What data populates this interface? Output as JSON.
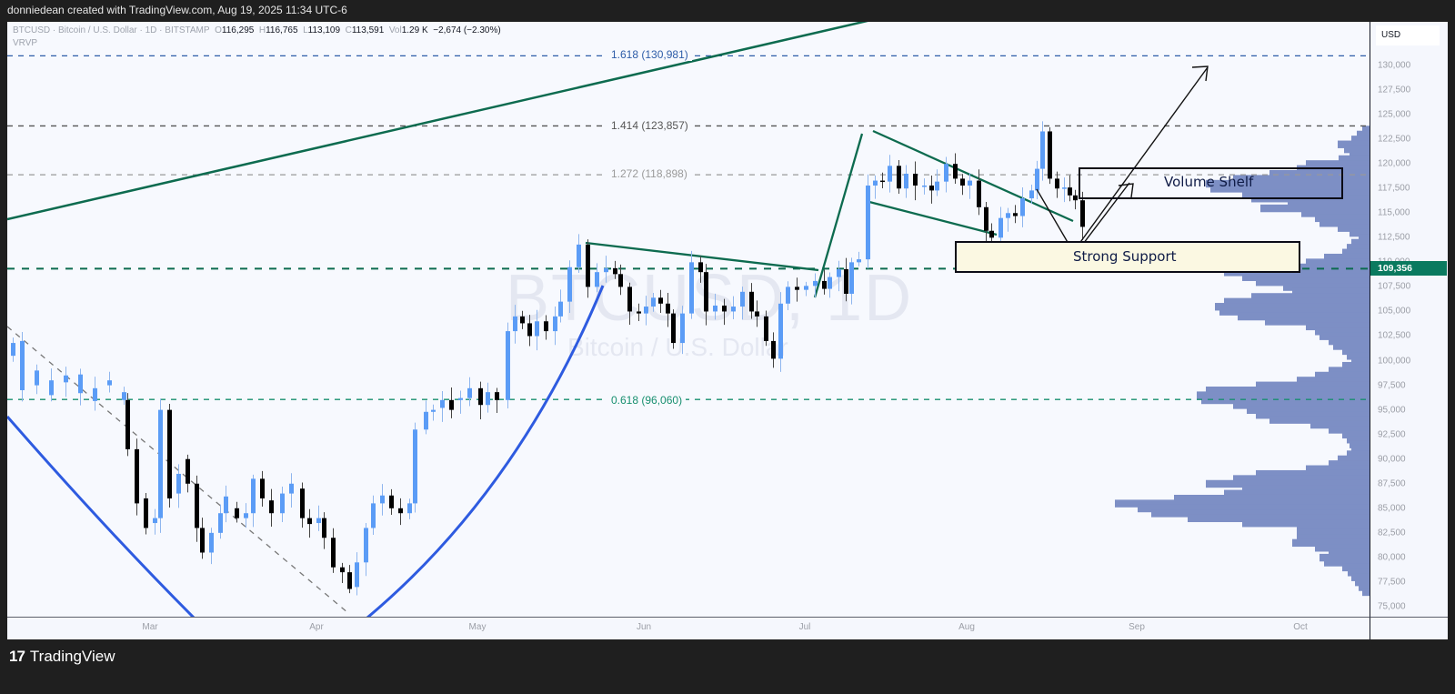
{
  "header": {
    "attribution": "donniedean created with TradingView.com, Aug 19, 2025 11:34 UTC-6"
  },
  "legend": {
    "symbol": "BTCUSD",
    "description": "Bitcoin / U.S. Dollar",
    "interval": "1D",
    "exchange": "BITSTAMP",
    "open_label": "O",
    "open": "116,295",
    "high_label": "H",
    "high": "116,765",
    "low_label": "L",
    "low": "113,109",
    "close_label": "C",
    "close": "113,591",
    "vol_label": "Vol",
    "vol": "1.29 K",
    "change": "−2,674 (−2.30%)",
    "indicator": "VRVP"
  },
  "watermark": {
    "symbol": "BTCUSD, 1D",
    "name": "Bitcoin / U.S. Dollar"
  },
  "price_axis": {
    "currency": "USD",
    "ticks": [
      "130,000",
      "127,500",
      "125,000",
      "122,500",
      "120,000",
      "117,500",
      "115,000",
      "112,500",
      "110,000",
      "107,500",
      "105,000",
      "102,500",
      "100,000",
      "97,500",
      "95,000",
      "92,500",
      "90,000",
      "87,500",
      "85,000",
      "82,500",
      "80,000",
      "77,500",
      "75,000"
    ],
    "last_price": "109,356",
    "last_price_color": "#0a7a5f"
  },
  "time_axis": {
    "labels": [
      "Mar",
      "Apr",
      "May",
      "Jun",
      "Jul",
      "Aug",
      "Sep",
      "Oct"
    ]
  },
  "annotations": {
    "fib_1618": "1.618 (130,981)",
    "fib_1414": "1.414 (123,857)",
    "fib_1272": "1.272 (118,898)",
    "fib_0618": "0.618 (96,060)",
    "volume_shelf": "Volume Shelf",
    "strong_support": "Strong Support"
  },
  "colors": {
    "up_candle": "#5b9cf6",
    "down_candle": "#000000",
    "trendline": "#0d6b4f",
    "curve": "#2962ff",
    "fib_1618": "#2d5ca8",
    "fib_0618": "#178f6f",
    "vrvp_bar": "#7d8fc5"
  },
  "footer": {
    "brand": "TradingView"
  },
  "chart_data": {
    "type": "candlestick",
    "title": "BTCUSD · Bitcoin / U.S. Dollar · 1D · BITSTAMP",
    "xlabel": "",
    "ylabel": "USD",
    "ylim": [
      74000,
      133000
    ],
    "x_range": [
      "2025-02-05",
      "2025-10-20"
    ],
    "grid": false,
    "last_ohlc": {
      "open": 116295,
      "high": 116765,
      "low": 113109,
      "close": 113591,
      "volume": "1.29K",
      "change": -2674,
      "change_pct": -2.3
    },
    "horizontal_levels": [
      {
        "label": "1.618",
        "price": 130981,
        "style": "dashed",
        "color": "#2d5ca8"
      },
      {
        "label": "1.414",
        "price": 123857,
        "style": "dashed",
        "color": "#555555"
      },
      {
        "label": "1.272",
        "price": 118898,
        "style": "dashed",
        "color": "#999999"
      },
      {
        "label": "support",
        "price": 109356,
        "style": "dashed",
        "color": "#0d6b4f"
      },
      {
        "label": "0.618",
        "price": 96060,
        "style": "dashed",
        "color": "#178f6f"
      }
    ],
    "zones": [
      {
        "label": "Volume Shelf",
        "price_low": 116500,
        "price_high": 119200,
        "date_start": "2025-08-26",
        "date_end": "2025-10-13"
      },
      {
        "label": "Strong Support",
        "price_low": 109000,
        "price_high": 112000,
        "date_start": "2025-07-29",
        "date_end": "2025-10-13"
      }
    ],
    "close_path_approx": [
      {
        "date": "2025-02-05",
        "close": 101500
      },
      {
        "date": "2025-02-15",
        "close": 97000
      },
      {
        "date": "2025-02-25",
        "close": 89000
      },
      {
        "date": "2025-03-02",
        "close": 94500
      },
      {
        "date": "2025-03-10",
        "close": 80500
      },
      {
        "date": "2025-03-20",
        "close": 84500
      },
      {
        "date": "2025-03-28",
        "close": 83000
      },
      {
        "date": "2025-04-07",
        "close": 77500
      },
      {
        "date": "2025-04-15",
        "close": 84500
      },
      {
        "date": "2025-04-22",
        "close": 93500
      },
      {
        "date": "2025-05-01",
        "close": 96500
      },
      {
        "date": "2025-05-09",
        "close": 103000
      },
      {
        "date": "2025-05-22",
        "close": 111500
      },
      {
        "date": "2025-06-05",
        "close": 101500
      },
      {
        "date": "2025-06-10",
        "close": 110000
      },
      {
        "date": "2025-06-22",
        "close": 101000
      },
      {
        "date": "2025-07-02",
        "close": 108800
      },
      {
        "date": "2025-07-11",
        "close": 117500
      },
      {
        "date": "2025-07-14",
        "close": 119800
      },
      {
        "date": "2025-07-28",
        "close": 118000
      },
      {
        "date": "2025-08-02",
        "close": 112500
      },
      {
        "date": "2025-08-08",
        "close": 116500
      },
      {
        "date": "2025-08-13",
        "close": 123300
      },
      {
        "date": "2025-08-14",
        "close": 118300
      },
      {
        "date": "2025-08-19",
        "close": 113591
      }
    ],
    "projection": {
      "from": {
        "date": "2025-08-19",
        "price": 113000
      },
      "via": {
        "date": "2025-08-24",
        "price": 110800
      },
      "to": {
        "date": "2025-09-15",
        "price": 129500
      }
    }
  }
}
